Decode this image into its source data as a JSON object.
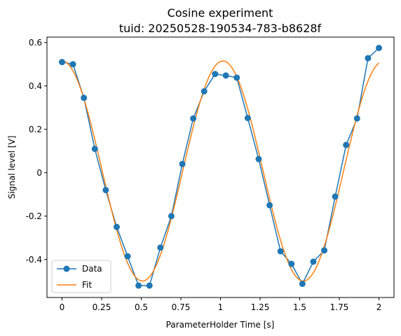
{
  "chart_data": {
    "type": "line",
    "title": "Cosine experiment",
    "subtitle": "tuid: 20250528-190534-783-b8628f",
    "xlabel": "ParameterHolder Time [s]",
    "ylabel": "Signal level [V]",
    "xlim": [
      -0.095,
      2.095
    ],
    "ylim": [
      -0.575,
      0.625
    ],
    "xticks": [
      0,
      0.25,
      0.5,
      0.75,
      1,
      1.25,
      1.5,
      1.75,
      2
    ],
    "xtick_labels": [
      "0",
      "0.25",
      "0.5",
      "0.75",
      "1",
      "1.25",
      "1.5",
      "1.75",
      "2"
    ],
    "yticks": [
      -0.4,
      -0.2,
      0,
      0.2,
      0.4,
      0.6
    ],
    "ytick_labels": [
      "-0.4",
      "-0.2",
      "0",
      "0.2",
      "0.4",
      "0.6"
    ],
    "grid": false,
    "legend_position": "lower-left",
    "series": [
      {
        "name": "Data",
        "color": "#1f77b4",
        "marker": "circle",
        "x": [
          0,
          0.069,
          0.138,
          0.207,
          0.276,
          0.345,
          0.414,
          0.483,
          0.552,
          0.621,
          0.69,
          0.759,
          0.828,
          0.897,
          0.966,
          1.034,
          1.103,
          1.172,
          1.241,
          1.31,
          1.379,
          1.448,
          1.517,
          1.586,
          1.655,
          1.724,
          1.793,
          1.862,
          1.931,
          2.0
        ],
        "y": [
          0.51,
          0.5,
          0.345,
          0.11,
          -0.08,
          -0.25,
          -0.385,
          -0.52,
          -0.52,
          -0.345,
          -0.2,
          0.04,
          0.25,
          0.375,
          0.455,
          0.448,
          0.438,
          0.252,
          0.063,
          -0.15,
          -0.362,
          -0.42,
          -0.512,
          -0.41,
          -0.358,
          -0.11,
          0.128,
          0.25,
          0.528,
          0.575
        ]
      },
      {
        "name": "Fit",
        "color": "#ff7f0e",
        "marker": "none",
        "amplitude": 0.507,
        "frequency": 0.985,
        "offset": 0.008,
        "x_range": [
          0,
          2
        ]
      }
    ]
  }
}
